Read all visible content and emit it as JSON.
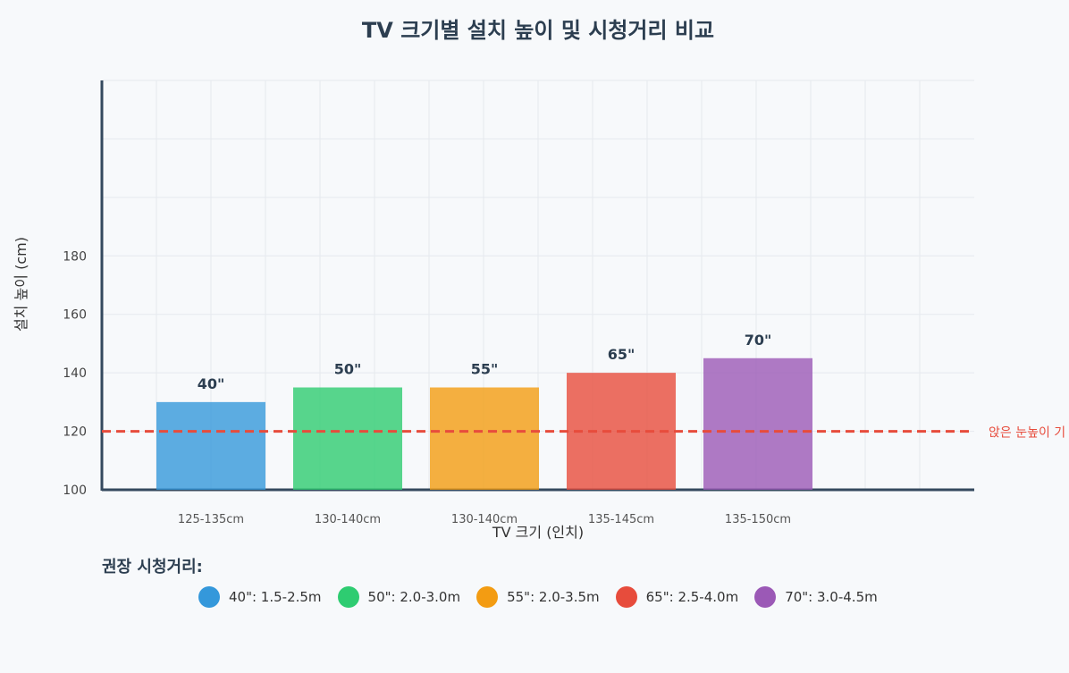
{
  "chart_data": {
    "type": "bar",
    "title": "TV 크기별 설치 높이 및 시청거리 비교",
    "xlabel": "TV 크기 (인치)",
    "ylabel": "설치 높이 (cm)",
    "categories": [
      "40\"",
      "50\"",
      "55\"",
      "65\"",
      "70\""
    ],
    "values": [
      130,
      135,
      135,
      140,
      145
    ],
    "range_labels": [
      "125-135cm",
      "130-140cm",
      "130-140cm",
      "135-145cm",
      "135-150cm"
    ],
    "colors": [
      "#3498db",
      "#2ecc71",
      "#f39c12",
      "#e74c3c",
      "#9b59b6"
    ],
    "ylim": [
      100,
      240
    ],
    "yticks": [
      100,
      120,
      140,
      160,
      180
    ],
    "grid": true,
    "reference_line": {
      "value": 120,
      "label": "앉은 눈높이 기",
      "color": "#e74c3c",
      "style": "dashed"
    }
  },
  "legend": {
    "title": "권장 시청거리:",
    "items": [
      {
        "label": "40\": 1.5-2.5m",
        "color": "#3498db"
      },
      {
        "label": "50\": 2.0-3.0m",
        "color": "#2ecc71"
      },
      {
        "label": "55\": 2.0-3.5m",
        "color": "#f39c12"
      },
      {
        "label": "65\": 2.5-4.0m",
        "color": "#e74c3c"
      },
      {
        "label": "70\": 3.0-4.5m",
        "color": "#9b59b6"
      }
    ]
  }
}
